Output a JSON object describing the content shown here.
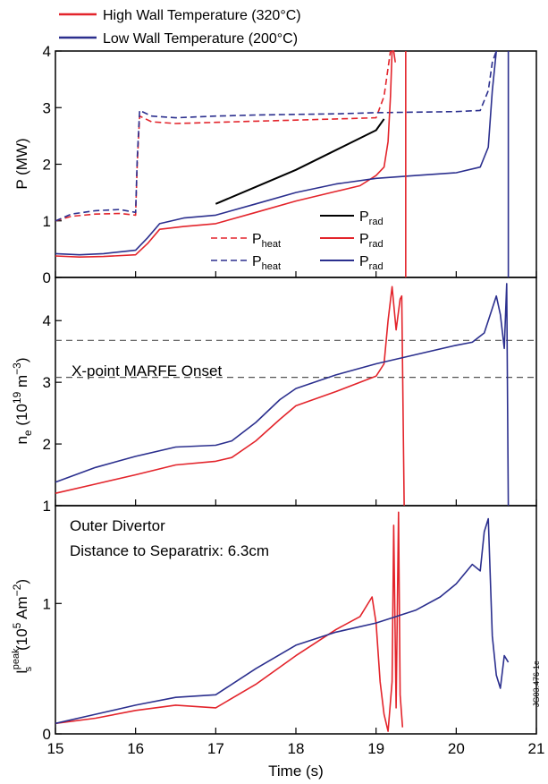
{
  "colors": {
    "high": "#e3242b",
    "low": "#2b2f8e",
    "prad_black": "#000000",
    "marfe_line": "#555555"
  },
  "top_legend": {
    "high_label": "High Wall Temperature (320°C)",
    "low_label": "Low Wall Temperature (200°C)"
  },
  "side_code": "JG03.476-1c",
  "chart_data": [
    {
      "type": "line",
      "ylabel_main": "P (MW)",
      "ylim": [
        0,
        4
      ],
      "xlim": [
        15,
        21
      ],
      "yticks": [
        "0",
        "1",
        "2",
        "3",
        "4"
      ],
      "legend": {
        "heat_main": "P",
        "heat_sub": "heat",
        "rad_main": "P",
        "rad_sub": "rad"
      },
      "series": [
        {
          "name": "P_heat",
          "group": "high",
          "style": "dashed",
          "x": [
            15.0,
            15.2,
            15.5,
            15.8,
            16.0,
            16.02,
            16.05,
            16.2,
            16.5,
            17.0,
            17.5,
            18.0,
            18.5,
            19.0,
            19.1,
            19.15,
            19.18
          ],
          "y": [
            1.0,
            1.08,
            1.12,
            1.13,
            1.1,
            2.0,
            2.85,
            2.75,
            2.72,
            2.74,
            2.76,
            2.78,
            2.8,
            2.82,
            3.2,
            3.7,
            4.0
          ]
        },
        {
          "name": "P_heat",
          "group": "low",
          "style": "dashed",
          "x": [
            15.0,
            15.2,
            15.5,
            15.8,
            16.0,
            16.02,
            16.05,
            16.2,
            16.5,
            17.0,
            17.5,
            18.0,
            18.5,
            19.0,
            19.5,
            20.0,
            20.3,
            20.4,
            20.45,
            20.5
          ],
          "y": [
            1.0,
            1.12,
            1.18,
            1.2,
            1.15,
            2.1,
            2.95,
            2.85,
            2.82,
            2.85,
            2.87,
            2.88,
            2.89,
            2.91,
            2.92,
            2.93,
            2.95,
            3.3,
            3.8,
            4.0
          ]
        },
        {
          "name": "P_rad",
          "group": "high",
          "style": "solid",
          "x": [
            15.0,
            15.3,
            15.6,
            16.0,
            16.15,
            16.3,
            16.6,
            17.0,
            17.5,
            18.0,
            18.5,
            18.8,
            19.0,
            19.1,
            19.15,
            19.18,
            19.2,
            19.22,
            19.24
          ],
          "y": [
            0.38,
            0.36,
            0.37,
            0.4,
            0.6,
            0.85,
            0.9,
            0.95,
            1.15,
            1.35,
            1.52,
            1.62,
            1.8,
            1.95,
            2.4,
            3.2,
            4.0,
            4.0,
            3.8
          ]
        },
        {
          "name": "P_rad",
          "group": "low",
          "style": "solid",
          "x": [
            15.0,
            15.3,
            15.6,
            16.0,
            16.15,
            16.3,
            16.6,
            17.0,
            17.5,
            18.0,
            18.5,
            19.0,
            19.5,
            20.0,
            20.3,
            20.4,
            20.45,
            20.5
          ],
          "y": [
            0.42,
            0.4,
            0.42,
            0.48,
            0.7,
            0.95,
            1.05,
            1.1,
            1.3,
            1.5,
            1.65,
            1.75,
            1.8,
            1.85,
            1.95,
            2.3,
            3.3,
            4.0
          ]
        },
        {
          "name": "P_rad",
          "group": "black",
          "style": "solid",
          "x": [
            17.0,
            17.5,
            18.0,
            18.5,
            19.0,
            19.1
          ],
          "y": [
            1.3,
            1.6,
            1.9,
            2.25,
            2.6,
            2.8
          ]
        }
      ],
      "vlines": [
        {
          "group": "high",
          "x": 19.37
        },
        {
          "group": "low",
          "x": 20.65
        }
      ]
    },
    {
      "type": "line",
      "ylabel_main": "n",
      "ylabel_sub": "e",
      "ylabel_rest": " (10",
      "ylabel_exp": "19",
      "ylabel_unit": " m",
      "ylabel_unit_exp": "−3",
      "ylabel_close": ")",
      "ylim": [
        1,
        4.7
      ],
      "xlim": [
        15,
        21
      ],
      "yticks": [
        "1",
        "2",
        "3",
        "4"
      ],
      "annotation": "X-point MARFE Onset",
      "marfe_levels": [
        3.08,
        3.68
      ],
      "series": [
        {
          "group": "high",
          "x": [
            15.0,
            15.5,
            16.0,
            16.5,
            17.0,
            17.2,
            17.5,
            17.8,
            18.0,
            18.5,
            19.0,
            19.1,
            19.15,
            19.2,
            19.25,
            19.3,
            19.32,
            19.35
          ],
          "y": [
            1.2,
            1.35,
            1.5,
            1.66,
            1.72,
            1.78,
            2.05,
            2.4,
            2.62,
            2.85,
            3.1,
            3.3,
            4.0,
            4.55,
            3.85,
            4.35,
            4.4,
            1.0
          ]
        },
        {
          "group": "low",
          "x": [
            15.0,
            15.5,
            16.0,
            16.5,
            17.0,
            17.2,
            17.5,
            17.8,
            18.0,
            18.5,
            19.0,
            19.5,
            20.0,
            20.2,
            20.35,
            20.5,
            20.55,
            20.6,
            20.63,
            20.65
          ],
          "y": [
            1.38,
            1.62,
            1.8,
            1.95,
            1.98,
            2.05,
            2.35,
            2.72,
            2.9,
            3.12,
            3.3,
            3.45,
            3.6,
            3.65,
            3.8,
            4.4,
            4.1,
            3.55,
            4.6,
            1.0
          ]
        }
      ]
    },
    {
      "type": "line",
      "ylabel_main": "I",
      "ylabel_sub": "s",
      "ylabel_sup": "peak",
      "ylabel_rest": "(10",
      "ylabel_exp": "5",
      "ylabel_unit": " Am",
      "ylabel_unit_exp": "−2",
      "ylabel_close": ")",
      "ylim": [
        0,
        1.75
      ],
      "xlim": [
        15,
        21
      ],
      "yticks": [
        "0",
        "1"
      ],
      "xticks": [
        "15",
        "16",
        "17",
        "18",
        "19",
        "20",
        "21"
      ],
      "xlabel": "Time (s)",
      "annotation_line1": "Outer Divertor",
      "annotation_line2": "Distance to Separatrix: 6.3cm",
      "series": [
        {
          "group": "high",
          "x": [
            15.0,
            15.5,
            16.0,
            16.5,
            17.0,
            17.5,
            18.0,
            18.5,
            18.8,
            18.95,
            19.0,
            19.05,
            19.1,
            19.15,
            19.2,
            19.22,
            19.25,
            19.28,
            19.3,
            19.33
          ],
          "y": [
            0.08,
            0.12,
            0.18,
            0.22,
            0.2,
            0.38,
            0.6,
            0.8,
            0.9,
            1.05,
            0.85,
            0.4,
            0.15,
            0.02,
            0.4,
            1.6,
            0.2,
            1.7,
            0.3,
            0.05
          ]
        },
        {
          "group": "low",
          "x": [
            15.0,
            15.5,
            16.0,
            16.5,
            17.0,
            17.5,
            18.0,
            18.5,
            19.0,
            19.5,
            19.8,
            20.0,
            20.2,
            20.3,
            20.35,
            20.4,
            20.45,
            20.5,
            20.55,
            20.6,
            20.65
          ],
          "y": [
            0.08,
            0.15,
            0.22,
            0.28,
            0.3,
            0.5,
            0.68,
            0.78,
            0.85,
            0.95,
            1.05,
            1.15,
            1.3,
            1.25,
            1.55,
            1.65,
            0.75,
            0.45,
            0.35,
            0.6,
            0.55
          ]
        }
      ]
    }
  ]
}
